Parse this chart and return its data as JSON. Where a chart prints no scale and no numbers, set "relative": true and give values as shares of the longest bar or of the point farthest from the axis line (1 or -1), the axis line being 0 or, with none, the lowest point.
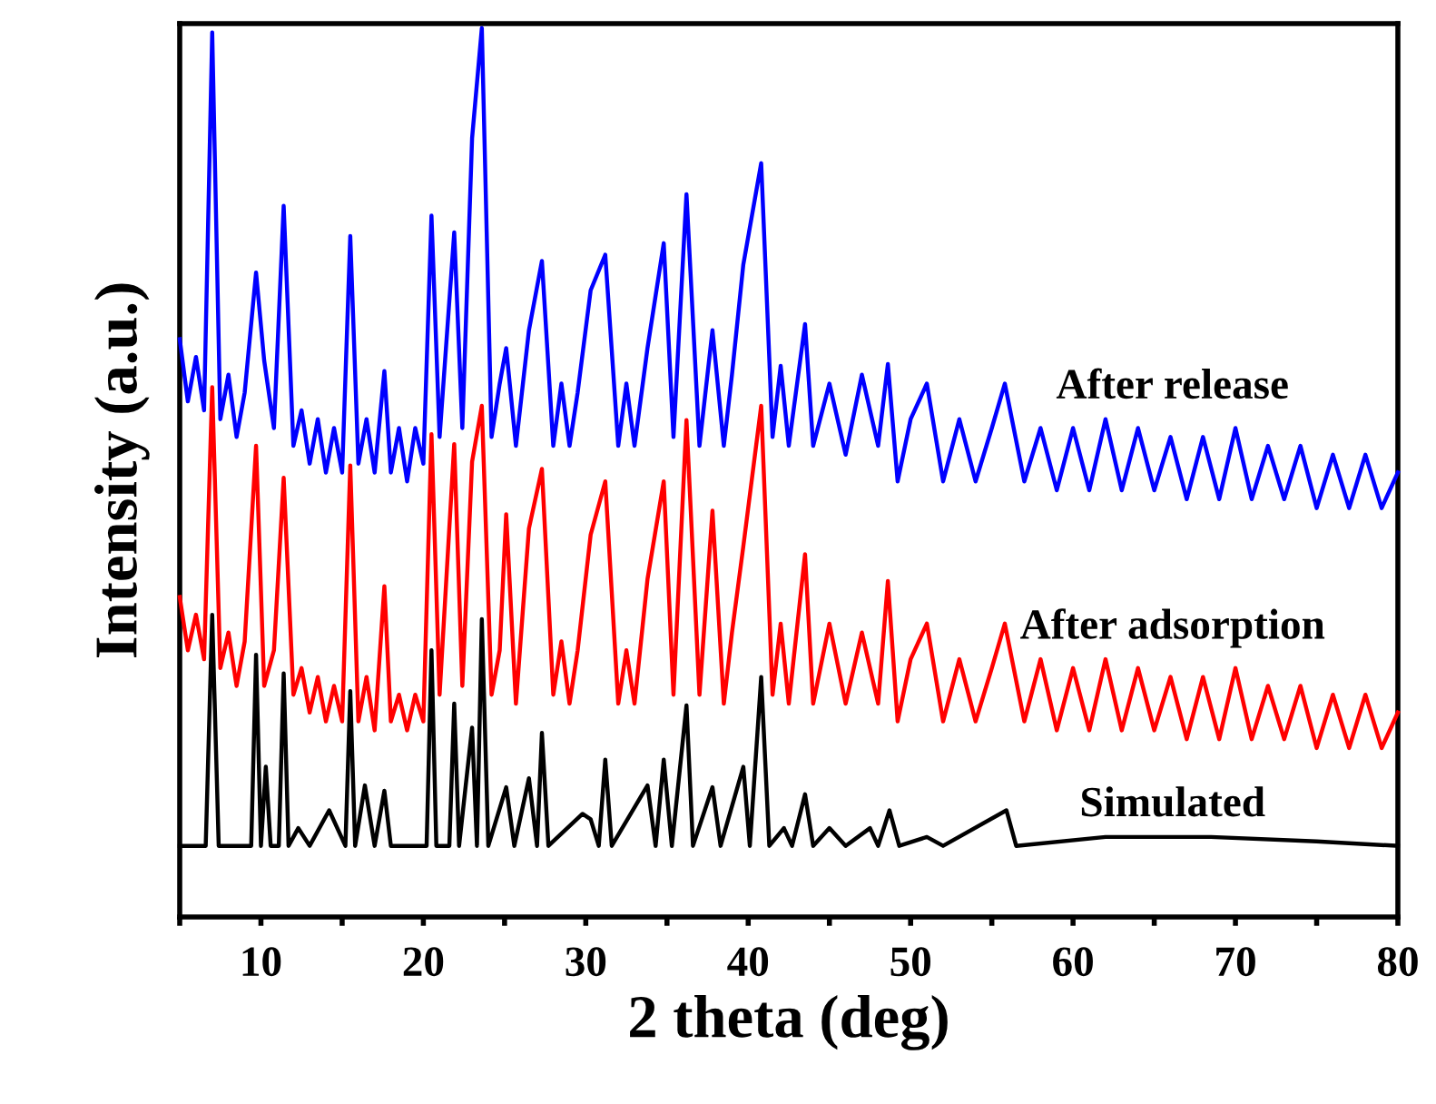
{
  "chart_data": {
    "type": "line",
    "relative": true,
    "xlabel": "2 theta (deg)",
    "ylabel": "Intensity (a.u.)",
    "xlim": [
      5,
      80
    ],
    "xticks": [
      {
        "value": 5,
        "label": null
      },
      10,
      {
        "value": 15,
        "label": null
      },
      20,
      {
        "value": 25,
        "label": null
      },
      30,
      {
        "value": 35,
        "label": null
      },
      40,
      {
        "value": 45,
        "label": null
      },
      50,
      {
        "value": 55,
        "label": null
      },
      60,
      {
        "value": 65,
        "label": null
      },
      70,
      {
        "value": 75,
        "label": null
      },
      80
    ],
    "grid": false,
    "legend": false,
    "marker": "none",
    "line_style": "solid",
    "series": [
      {
        "name": "Simulated",
        "color": "#000000",
        "x": [
          5,
          6.6,
          7.0,
          7.4,
          9.4,
          9.7,
          10.0,
          10.3,
          10.6,
          11.1,
          11.4,
          11.7,
          12.3,
          13,
          14.2,
          15.2,
          15.5,
          15.8,
          16.4,
          17.0,
          17.6,
          18.0,
          20.2,
          20.5,
          20.8,
          21.6,
          21.9,
          22.2,
          23.0,
          23.3,
          23.6,
          24.0,
          25.1,
          25.6,
          26.5,
          27.0,
          27.3,
          27.7,
          29.8,
          30.3,
          30.8,
          31.2,
          31.6,
          33.8,
          34.3,
          34.8,
          35.3,
          36.2,
          36.6,
          37.8,
          38.3,
          39.7,
          40.1,
          40.8,
          41.3,
          42.2,
          42.7,
          43.5,
          44,
          45,
          46,
          47.5,
          48,
          48.7,
          49.3,
          51,
          52,
          55.9,
          56.5,
          62,
          68.5,
          75,
          80
        ],
        "values": [
          0.08,
          0.08,
          0.34,
          0.08,
          0.08,
          0.295,
          0.08,
          0.169,
          0.08,
          0.08,
          0.274,
          0.08,
          0.1,
          0.08,
          0.12,
          0.08,
          0.254,
          0.08,
          0.148,
          0.08,
          0.142,
          0.08,
          0.08,
          0.3,
          0.08,
          0.08,
          0.24,
          0.08,
          0.213,
          0.08,
          0.335,
          0.08,
          0.146,
          0.08,
          0.156,
          0.08,
          0.207,
          0.08,
          0.116,
          0.11,
          0.08,
          0.177,
          0.08,
          0.148,
          0.08,
          0.177,
          0.08,
          0.238,
          0.08,
          0.146,
          0.08,
          0.169,
          0.08,
          0.27,
          0.08,
          0.1,
          0.08,
          0.138,
          0.08,
          0.1,
          0.08,
          0.1,
          0.08,
          0.12,
          0.08,
          0.09,
          0.08,
          0.12,
          0.08,
          0.09,
          0.09,
          0.085,
          0.08
        ]
      },
      {
        "name": "After adsorption",
        "color": "#ff0000",
        "x": [
          5,
          5.5,
          6,
          6.5,
          7.0,
          7.5,
          8,
          8.5,
          9,
          9.7,
          10.2,
          10.8,
          11.4,
          12,
          12.5,
          13,
          13.5,
          14,
          14.5,
          15,
          15.5,
          16,
          16.5,
          17,
          17.6,
          18,
          18.5,
          19,
          19.5,
          20,
          20.5,
          21,
          21.9,
          22.4,
          23.0,
          23.6,
          24.2,
          24.7,
          25.1,
          25.7,
          26.5,
          27.3,
          28,
          28.5,
          29,
          29.5,
          30.3,
          31.2,
          32,
          32.5,
          33,
          33.8,
          34.8,
          35.4,
          36.2,
          37,
          37.8,
          38.5,
          39,
          39.7,
          40.8,
          41.5,
          42,
          42.5,
          43.5,
          44,
          45,
          46,
          47,
          48,
          48.6,
          49.2,
          50,
          51,
          52,
          53,
          54,
          55,
          55.8,
          57,
          58,
          59,
          60,
          61,
          62,
          63,
          64,
          65,
          66,
          67,
          68,
          69,
          70,
          71,
          72,
          73,
          74,
          75,
          76,
          77,
          78,
          79,
          80
        ],
        "values": [
          0.36,
          0.3,
          0.34,
          0.29,
          0.596,
          0.28,
          0.32,
          0.26,
          0.31,
          0.53,
          0.26,
          0.3,
          0.494,
          0.25,
          0.28,
          0.23,
          0.27,
          0.22,
          0.26,
          0.22,
          0.508,
          0.22,
          0.27,
          0.21,
          0.372,
          0.22,
          0.25,
          0.21,
          0.25,
          0.22,
          0.543,
          0.25,
          0.532,
          0.26,
          0.512,
          0.575,
          0.25,
          0.3,
          0.453,
          0.24,
          0.437,
          0.504,
          0.25,
          0.31,
          0.24,
          0.3,
          0.43,
          0.49,
          0.24,
          0.3,
          0.24,
          0.38,
          0.49,
          0.25,
          0.559,
          0.25,
          0.457,
          0.24,
          0.32,
          0.417,
          0.575,
          0.25,
          0.33,
          0.24,
          0.408,
          0.24,
          0.33,
          0.24,
          0.32,
          0.24,
          0.378,
          0.22,
          0.29,
          0.33,
          0.22,
          0.29,
          0.22,
          0.28,
          0.33,
          0.22,
          0.29,
          0.21,
          0.28,
          0.21,
          0.29,
          0.21,
          0.28,
          0.21,
          0.27,
          0.2,
          0.27,
          0.2,
          0.28,
          0.2,
          0.26,
          0.2,
          0.26,
          0.19,
          0.25,
          0.19,
          0.25,
          0.19,
          0.23
        ]
      },
      {
        "name": "After release",
        "color": "#0000ff",
        "x": [
          5,
          5.5,
          6,
          6.5,
          7.0,
          7.5,
          8,
          8.5,
          9,
          9.7,
          10.2,
          10.8,
          11.4,
          12,
          12.5,
          13,
          13.5,
          14,
          14.5,
          15,
          15.5,
          16,
          16.5,
          17,
          17.6,
          18,
          18.5,
          19,
          19.5,
          20,
          20.5,
          21,
          21.9,
          22.4,
          23.0,
          23.6,
          24.2,
          24.7,
          25.1,
          25.7,
          26.5,
          27.3,
          28,
          28.5,
          29,
          29.5,
          30.3,
          31.2,
          32,
          32.5,
          33,
          33.8,
          34.8,
          35.4,
          36.2,
          37,
          37.8,
          38.5,
          39,
          39.7,
          40.8,
          41.5,
          42,
          42.5,
          43.5,
          44,
          45,
          46,
          47,
          48,
          48.6,
          49.2,
          50,
          51,
          52,
          53,
          54,
          55,
          55.8,
          57,
          58,
          59,
          60,
          61,
          62,
          63,
          64,
          65,
          66,
          67,
          68,
          69,
          70,
          71,
          72,
          73,
          74,
          75,
          76,
          77,
          78,
          79,
          80
        ],
        "values": [
          0.65,
          0.58,
          0.63,
          0.57,
          0.995,
          0.56,
          0.61,
          0.54,
          0.59,
          0.725,
          0.626,
          0.55,
          0.8,
          0.53,
          0.57,
          0.51,
          0.56,
          0.5,
          0.55,
          0.5,
          0.766,
          0.51,
          0.56,
          0.5,
          0.614,
          0.5,
          0.55,
          0.49,
          0.55,
          0.51,
          0.789,
          0.54,
          0.77,
          0.55,
          0.876,
          1.0,
          0.54,
          0.6,
          0.64,
          0.53,
          0.66,
          0.738,
          0.53,
          0.6,
          0.53,
          0.59,
          0.705,
          0.745,
          0.53,
          0.6,
          0.53,
          0.64,
          0.758,
          0.54,
          0.813,
          0.53,
          0.66,
          0.53,
          0.61,
          0.734,
          0.848,
          0.54,
          0.62,
          0.53,
          0.667,
          0.53,
          0.6,
          0.52,
          0.61,
          0.53,
          0.622,
          0.49,
          0.56,
          0.6,
          0.49,
          0.56,
          0.49,
          0.55,
          0.6,
          0.49,
          0.55,
          0.48,
          0.55,
          0.48,
          0.56,
          0.48,
          0.55,
          0.48,
          0.54,
          0.47,
          0.54,
          0.47,
          0.55,
          0.47,
          0.53,
          0.47,
          0.53,
          0.46,
          0.52,
          0.46,
          0.52,
          0.46,
          0.5
        ]
      }
    ]
  }
}
